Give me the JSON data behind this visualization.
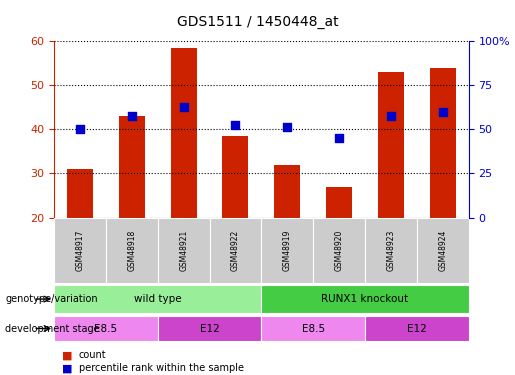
{
  "title": "GDS1511 / 1450448_at",
  "samples": [
    "GSM48917",
    "GSM48918",
    "GSM48921",
    "GSM48922",
    "GSM48919",
    "GSM48920",
    "GSM48923",
    "GSM48924"
  ],
  "count_values": [
    31,
    43,
    58.5,
    38.5,
    32,
    27,
    53,
    54
  ],
  "percentile_values": [
    40,
    43,
    45,
    41,
    40.5,
    38,
    43,
    44
  ],
  "ylim": [
    20,
    60
  ],
  "y2lim": [
    0,
    100
  ],
  "yticks": [
    20,
    30,
    40,
    50,
    60
  ],
  "y2ticks": [
    0,
    25,
    50,
    75,
    100
  ],
  "y2ticklabels": [
    "0",
    "25",
    "50",
    "75",
    "100%"
  ],
  "bar_color": "#cc2200",
  "dot_color": "#0000cc",
  "bar_width": 0.5,
  "genotype_groups": [
    {
      "label": "wild type",
      "start": 0,
      "end": 4,
      "color": "#99ee99"
    },
    {
      "label": "RUNX1 knockout",
      "start": 4,
      "end": 8,
      "color": "#44cc44"
    }
  ],
  "stage_groups": [
    {
      "label": "E8.5",
      "start": 0,
      "end": 2,
      "color": "#ee88ee"
    },
    {
      "label": "E12",
      "start": 2,
      "end": 4,
      "color": "#cc44cc"
    },
    {
      "label": "E8.5",
      "start": 4,
      "end": 6,
      "color": "#ee88ee"
    },
    {
      "label": "E12",
      "start": 6,
      "end": 8,
      "color": "#cc44cc"
    }
  ],
  "legend_count_label": "count",
  "legend_pct_label": "percentile rank within the sample",
  "genotype_label": "genotype/variation",
  "stage_label": "development stage",
  "tick_color_left": "#cc2200",
  "tick_color_right": "#0000cc",
  "sample_bg": "#cccccc"
}
